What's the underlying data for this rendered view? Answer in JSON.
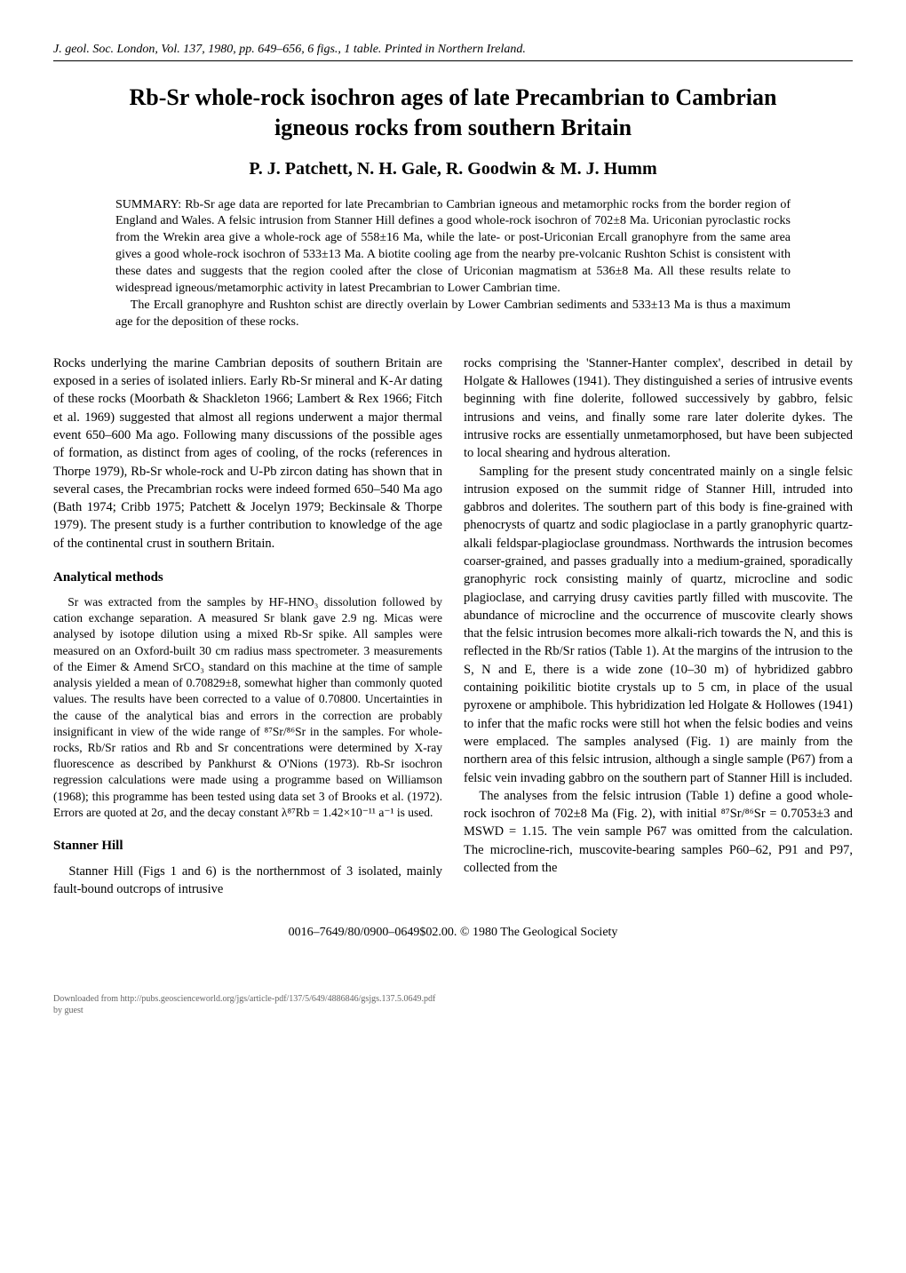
{
  "header": {
    "journal_line": "J. geol. Soc. London, Vol. 137, 1980, pp. 649–656, 6 figs., 1 table. Printed in Northern Ireland."
  },
  "title_line1": "Rb-Sr whole-rock isochron ages of late Precambrian to Cambrian",
  "title_line2": "igneous rocks from southern Britain",
  "authors": "P. J. Patchett, N. H. Gale, R. Goodwin & M. J. Humm",
  "summary": {
    "para1": "SUMMARY: Rb-Sr age data are reported for late Precambrian to Cambrian igneous and metamorphic rocks from the border region of England and Wales. A felsic intrusion from Stanner Hill defines a good whole-rock isochron of 702±8 Ma. Uriconian pyroclastic rocks from the Wrekin area give a whole-rock age of 558±16 Ma, while the late- or post-Uriconian Ercall granophyre from the same area gives a good whole-rock isochron of 533±13 Ma. A biotite cooling age from the nearby pre-volcanic Rushton Schist is consistent with these dates and suggests that the region cooled after the close of Uriconian magmatism at 536±8 Ma. All these results relate to widespread igneous/metamorphic activity in latest Precambrian to Lower Cambrian time.",
    "para2": "The Ercall granophyre and Rushton schist are directly overlain by Lower Cambrian sediments and 533±13 Ma is thus a maximum age for the deposition of these rocks."
  },
  "left_col": {
    "intro": "Rocks underlying the marine Cambrian deposits of southern Britain are exposed in a series of isolated inliers. Early Rb-Sr mineral and K-Ar dating of these rocks (Moorbath & Shackleton 1966; Lambert & Rex 1966; Fitch et al. 1969) suggested that almost all regions underwent a major thermal event 650–600 Ma ago. Following many discussions of the possible ages of formation, as distinct from ages of cooling, of the rocks (references in Thorpe 1979), Rb-Sr whole-rock and U-Pb zircon dating has shown that in several cases, the Precambrian rocks were indeed formed 650–540 Ma ago (Bath 1974; Cribb 1975; Patchett & Jocelyn 1979; Beckinsale & Thorpe 1979). The present study is a further contribution to knowledge of the age of the continental crust in southern Britain.",
    "methods_heading": "Analytical methods",
    "methods": "Sr was extracted from the samples by HF-HNO₃ dissolution followed by cation exchange separation. A measured Sr blank gave 2.9 ng. Micas were analysed by isotope dilution using a mixed Rb-Sr spike. All samples were measured on an Oxford-built 30 cm radius mass spectrometer. 3 measurements of the Eimer & Amend SrCO₃ standard on this machine at the time of sample analysis yielded a mean of 0.70829±8, somewhat higher than commonly quoted values. The results have been corrected to a value of 0.70800. Uncertainties in the cause of the analytical bias and errors in the correction are probably insignificant in view of the wide range of ⁸⁷Sr/⁸⁶Sr in the samples. For whole-rocks, Rb/Sr ratios and Rb and Sr concentrations were determined by X-ray fluorescence as described by Pankhurst & O'Nions (1973). Rb-Sr isochron regression calculations were made using a programme based on Williamson (1968); this programme has been tested using data set 3 of Brooks et al. (1972). Errors are quoted at 2σ, and the decay constant λ⁸⁷Rb = 1.42×10⁻¹¹ a⁻¹ is used.",
    "stanner_heading": "Stanner Hill",
    "stanner": "Stanner Hill (Figs 1 and 6) is the northernmost of 3 isolated, mainly fault-bound outcrops of intrusive"
  },
  "right_col": {
    "para1": "rocks comprising the 'Stanner-Hanter complex', described in detail by Holgate & Hallowes (1941). They distinguished a series of intrusive events beginning with fine dolerite, followed successively by gabbro, felsic intrusions and veins, and finally some rare later dolerite dykes. The intrusive rocks are essentially unmetamorphosed, but have been subjected to local shearing and hydrous alteration.",
    "para2": "Sampling for the present study concentrated mainly on a single felsic intrusion exposed on the summit ridge of Stanner Hill, intruded into gabbros and dolerites. The southern part of this body is fine-grained with phenocrysts of quartz and sodic plagioclase in a partly granophyric quartz-alkali feldspar-plagioclase groundmass. Northwards the intrusion becomes coarser-grained, and passes gradually into a medium-grained, sporadically granophyric rock consisting mainly of quartz, microcline and sodic plagioclase, and carrying drusy cavities partly filled with muscovite. The abundance of microcline and the occurrence of muscovite clearly shows that the felsic intrusion becomes more alkali-rich towards the N, and this is reflected in the Rb/Sr ratios (Table 1). At the margins of the intrusion to the S, N and E, there is a wide zone (10–30 m) of hybridized gabbro containing poikilitic biotite crystals up to 5 cm, in place of the usual pyroxene or amphibole. This hybridization led Holgate & Hollowes (1941) to infer that the mafic rocks were still hot when the felsic bodies and veins were emplaced. The samples analysed (Fig. 1) are mainly from the northern area of this felsic intrusion, although a single sample (P67) from a felsic vein invading gabbro on the southern part of Stanner Hill is included.",
    "para3": "The analyses from the felsic intrusion (Table 1) define a good whole-rock isochron of 702±8 Ma (Fig. 2), with initial ⁸⁷Sr/⁸⁶Sr = 0.7053±3 and MSWD = 1.15. The vein sample P67 was omitted from the calculation. The microcline-rich, muscovite-bearing samples P60–62, P91 and P97, collected from the"
  },
  "footer": {
    "copyright": "0016–7649/80/0900–0649$02.00. © 1980 The Geological Society",
    "download_line1": "Downloaded from http://pubs.geoscienceworld.org/jgs/article-pdf/137/5/649/4886846/gsjgs.137.5.0649.pdf",
    "download_line2": "by guest"
  }
}
